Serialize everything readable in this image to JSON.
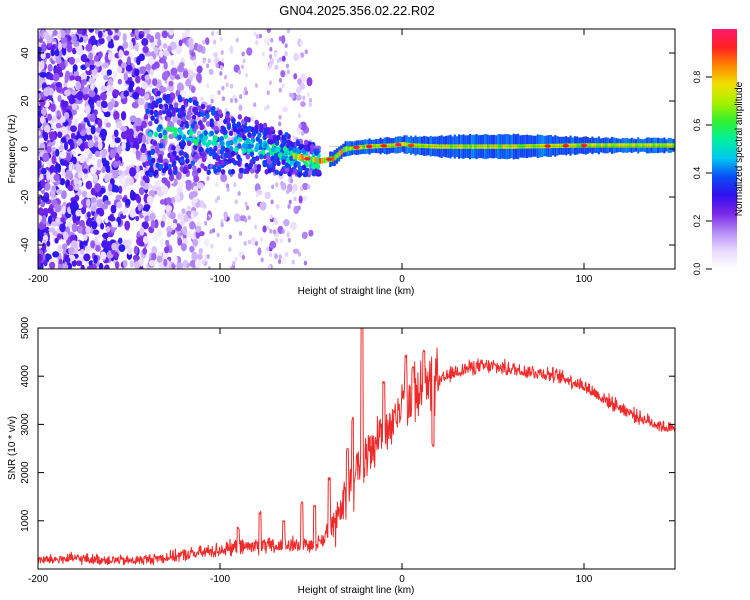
{
  "title": "GN04.2025.356.02.22.R02",
  "colors": {
    "snr_line": "#ee2b2b",
    "axis": "#000000",
    "bg": "#ffffff"
  },
  "chart_data": [
    {
      "type": "heatmap",
      "name": "spectrogram",
      "xlabel": "Height of straight line (km)",
      "ylabel": "Frequency (Hz)",
      "xlim": [
        -200,
        150
      ],
      "ylim": [
        -50,
        50
      ],
      "x_ticks": [
        -200,
        -100,
        0,
        100
      ],
      "y_ticks": [
        -40,
        -20,
        0,
        20,
        40
      ],
      "grid": false,
      "colorbar": {
        "label": "Normalized spectral amplitude",
        "range": [
          0,
          1
        ],
        "ticks": [
          "0.0",
          "0.2",
          "0.4",
          "0.6",
          "0.8"
        ],
        "tick_values": [
          0.0,
          0.2,
          0.4,
          0.6,
          0.8
        ],
        "colormap": [
          "#ffffff",
          "#e8d8ff",
          "#b48cf5",
          "#7a26e8",
          "#3010ee",
          "#0b4cf5",
          "#00c8f0",
          "#00f0a0",
          "#30f030",
          "#a8f000",
          "#f0e000",
          "#ff8800",
          "#ff2020",
          "#ff1a6e"
        ]
      },
      "ridge_track": [
        {
          "x": -135,
          "f": 7
        },
        {
          "x": -120,
          "f": 6
        },
        {
          "x": -100,
          "f": 3
        },
        {
          "x": -80,
          "f": 1
        },
        {
          "x": -60,
          "f": -3
        },
        {
          "x": -45,
          "f": -5
        },
        {
          "x": -38,
          "f": -4
        },
        {
          "x": -32,
          "f": 0
        },
        {
          "x": -20,
          "f": 1
        },
        {
          "x": -5,
          "f": 1.5
        },
        {
          "x": 0,
          "f": 2
        },
        {
          "x": 5,
          "f": 1.5
        },
        {
          "x": 20,
          "f": 1
        },
        {
          "x": 60,
          "f": 1
        },
        {
          "x": 100,
          "f": 1.5
        },
        {
          "x": 150,
          "f": 1.5
        }
      ]
    },
    {
      "type": "line",
      "name": "snr",
      "xlabel": "Height of straight line (km)",
      "ylabel": "SNR (10 * v/v)",
      "xlim": [
        -200,
        150
      ],
      "ylim": [
        0,
        5000
      ],
      "x_ticks": [
        -200,
        -100,
        0,
        100
      ],
      "y_ticks": [
        1000,
        2000,
        3000,
        4000,
        5000
      ],
      "grid": false,
      "series": [
        {
          "name": "SNR",
          "x": [
            -200,
            -190,
            -180,
            -170,
            -160,
            -150,
            -140,
            -130,
            -120,
            -110,
            -100,
            -90,
            -80,
            -70,
            -60,
            -50,
            -45,
            -40,
            -35,
            -30,
            -25,
            -20,
            -15,
            -10,
            -5,
            0,
            5,
            10,
            15,
            20,
            25,
            30,
            35,
            40,
            50,
            60,
            70,
            80,
            90,
            100,
            110,
            120,
            130,
            140,
            150
          ],
          "values": [
            180,
            200,
            220,
            200,
            190,
            170,
            200,
            240,
            290,
            340,
            400,
            450,
            480,
            460,
            500,
            480,
            560,
            800,
            1100,
            1700,
            2100,
            2300,
            2600,
            2900,
            3100,
            3300,
            3500,
            3650,
            3750,
            3850,
            4000,
            4100,
            4150,
            4200,
            4200,
            4150,
            4100,
            4050,
            3950,
            3800,
            3550,
            3350,
            3150,
            3000,
            2880
          ],
          "spikes": [
            {
              "x": -55,
              "y": 1400
            },
            {
              "x": -48,
              "y": 1350
            },
            {
              "x": -65,
              "y": 1000
            },
            {
              "x": -78,
              "y": 1200
            },
            {
              "x": -90,
              "y": 880
            },
            {
              "x": -40,
              "y": 1900
            },
            {
              "x": -30,
              "y": 2500
            },
            {
              "x": -27,
              "y": 3150
            },
            {
              "x": -22,
              "y": 5050
            },
            {
              "x": -10,
              "y": 3900
            },
            {
              "x": 2,
              "y": 4450
            },
            {
              "x": 6,
              "y": 4200
            },
            {
              "x": 12,
              "y": 4550
            },
            {
              "x": 17,
              "y": 2600
            }
          ]
        }
      ]
    }
  ]
}
